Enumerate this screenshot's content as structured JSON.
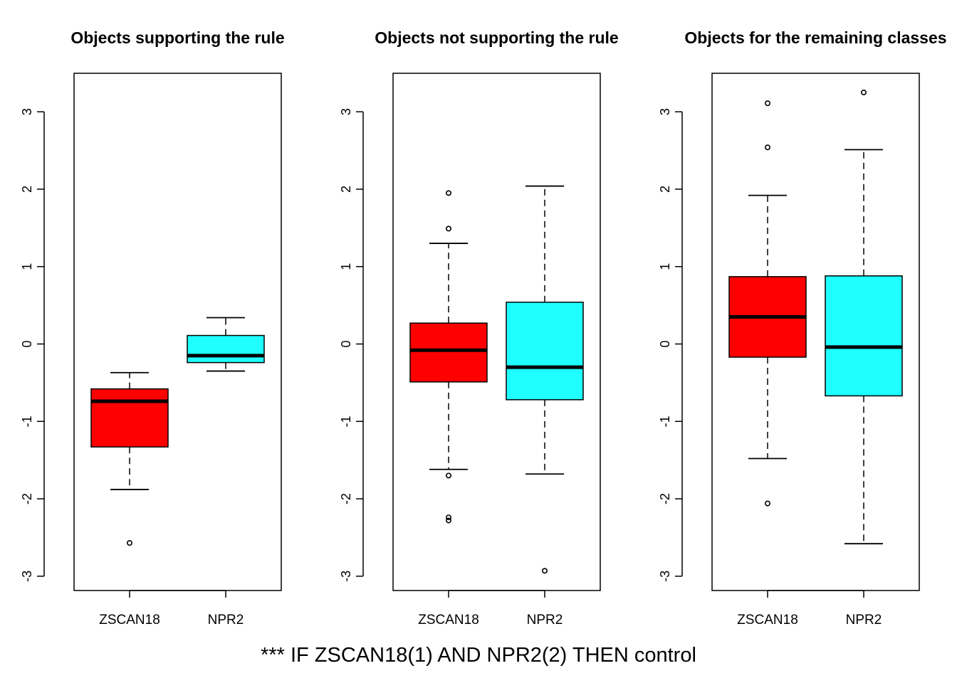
{
  "rule_text": "*** IF ZSCAN18(1) AND NPR2(2) THEN control",
  "colors": {
    "ZSCAN18": "#ff0000",
    "NPR2": "#1fffff"
  },
  "chart_data": [
    {
      "type": "boxplot",
      "title": "Objects supporting the rule",
      "categories": [
        "ZSCAN18",
        "NPR2"
      ],
      "yticks": [
        -3,
        -2,
        -1,
        0,
        1,
        2,
        3
      ],
      "ylim": [
        -3.2,
        3.5
      ],
      "series": [
        {
          "category": "ZSCAN18",
          "color": "#ff0000",
          "whisker_low": -1.88,
          "q1": -1.33,
          "median": -0.74,
          "q3": -0.58,
          "whisker_high": -0.37,
          "outliers": [
            -2.57
          ]
        },
        {
          "category": "NPR2",
          "color": "#1fffff",
          "whisker_low": -0.35,
          "q1": -0.24,
          "median": -0.15,
          "q3": 0.11,
          "whisker_high": 0.34,
          "outliers": []
        }
      ]
    },
    {
      "type": "boxplot",
      "title": "Objects not supporting the rule",
      "categories": [
        "ZSCAN18",
        "NPR2"
      ],
      "yticks": [
        -3,
        -2,
        -1,
        0,
        1,
        2,
        3
      ],
      "ylim": [
        -3.2,
        3.5
      ],
      "series": [
        {
          "category": "ZSCAN18",
          "color": "#ff0000",
          "whisker_low": -1.62,
          "q1": -0.49,
          "median": -0.08,
          "q3": 0.27,
          "whisker_high": 1.3,
          "outliers": [
            1.95,
            1.49,
            -1.7,
            -2.24,
            -2.28
          ]
        },
        {
          "category": "NPR2",
          "color": "#1fffff",
          "whisker_low": -1.68,
          "q1": -0.72,
          "median": -0.3,
          "q3": 0.54,
          "whisker_high": 2.04,
          "outliers": [
            -2.93
          ]
        }
      ]
    },
    {
      "type": "boxplot",
      "title": "Objects for the remaining classes",
      "categories": [
        "ZSCAN18",
        "NPR2"
      ],
      "yticks": [
        -3,
        -2,
        -1,
        0,
        1,
        2,
        3
      ],
      "ylim": [
        -3.2,
        3.5
      ],
      "series": [
        {
          "category": "ZSCAN18",
          "color": "#ff0000",
          "whisker_low": -1.48,
          "q1": -0.17,
          "median": 0.35,
          "q3": 0.87,
          "whisker_high": 1.92,
          "outliers": [
            3.11,
            2.54,
            -2.06
          ]
        },
        {
          "category": "NPR2",
          "color": "#1fffff",
          "whisker_low": -2.58,
          "q1": -0.67,
          "median": -0.04,
          "q3": 0.88,
          "whisker_high": 2.51,
          "outliers": [
            3.25
          ]
        }
      ]
    }
  ]
}
